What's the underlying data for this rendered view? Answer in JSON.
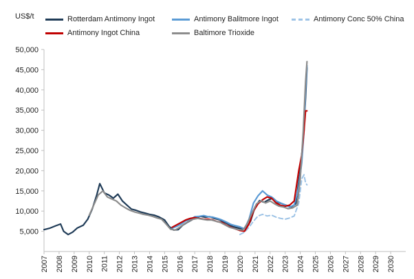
{
  "chart_data": {
    "type": "line",
    "ylabel": "US$/t",
    "ylim": [
      0,
      50000
    ],
    "yticks": [
      5000,
      10000,
      15000,
      20000,
      25000,
      30000,
      35000,
      40000,
      45000,
      50000
    ],
    "ytick_labels": [
      "5,000",
      "10,000",
      "15,000",
      "20,000",
      "25,000",
      "30,000",
      "35,000",
      "40,000",
      "45,000",
      "50,000"
    ],
    "xlim": [
      2007,
      2031
    ],
    "xticks": [
      2007,
      2008,
      2009,
      2010,
      2011,
      2012,
      2013,
      2014,
      2015,
      2016,
      2017,
      2018,
      2019,
      2020,
      2021,
      2022,
      2023,
      2024,
      2025,
      2026,
      2027,
      2028,
      2029,
      2030
    ],
    "xtick_labels": [
      "2007",
      "2008",
      "2009",
      "2010",
      "2011",
      "2012",
      "2013",
      "2014",
      "2015",
      "2016",
      "2017",
      "2018",
      "2019",
      "2020",
      "2021",
      "2022",
      "2023",
      "2024",
      "2025",
      "2026",
      "2027",
      "2028",
      "2029",
      "2030"
    ],
    "grid": false,
    "legend_position": "top",
    "series": [
      {
        "name": "Rotterdam Antimony Ingot",
        "color": "#1f3b57",
        "dash": "solid",
        "x": [
          2007.0,
          2007.4,
          2007.8,
          2008.1,
          2008.3,
          2008.6,
          2008.9,
          2009.2,
          2009.6,
          2009.9,
          2010.2,
          2010.5,
          2010.7,
          2011.0,
          2011.3,
          2011.6,
          2011.9,
          2012.2,
          2012.5,
          2012.8,
          2013.1,
          2013.4,
          2013.7,
          2014.0,
          2014.3,
          2014.6,
          2015.0,
          2015.3,
          2015.6,
          2015.9,
          2016.2,
          2016.5,
          2016.8,
          2017.1,
          2017.4,
          2017.7,
          2018.0,
          2018.3,
          2018.6,
          2018.9,
          2019.2,
          2019.5,
          2019.8,
          2020.1,
          2020.4,
          2020.7,
          2021.0,
          2021.3,
          2021.6,
          2021.9,
          2022.2,
          2022.5,
          2022.8,
          2023.1,
          2023.4,
          2023.7,
          2024.0,
          2024.2,
          2024.35,
          2024.45
        ],
        "y": [
          5400,
          5800,
          6400,
          6800,
          5000,
          4200,
          4800,
          5800,
          6500,
          8000,
          10500,
          14000,
          16800,
          14500,
          14000,
          13200,
          14200,
          12500,
          11500,
          10500,
          10200,
          9800,
          9500,
          9200,
          9000,
          8600,
          7800,
          6200,
          5300,
          5400,
          6500,
          7200,
          7800,
          8500,
          8700,
          8500,
          8600,
          8200,
          7900,
          7400,
          6800,
          6200,
          5900,
          5600,
          5700,
          7500,
          11000,
          12600,
          12200,
          12800,
          13200,
          12200,
          11800,
          11400,
          11000,
          11800,
          20000,
          28000,
          38000,
          45500
        ]
      },
      {
        "name": "Antimony Balitmore Ingot",
        "color": "#5b9bd5",
        "dash": "solid",
        "x": [
          2015.5,
          2015.8,
          2016.1,
          2016.4,
          2016.7,
          2017.0,
          2017.3,
          2017.6,
          2017.9,
          2018.2,
          2018.5,
          2018.8,
          2019.1,
          2019.4,
          2019.7,
          2020.0,
          2020.3,
          2020.6,
          2020.9,
          2021.2,
          2021.5,
          2021.8,
          2022.1,
          2022.4,
          2022.7,
          2023.0,
          2023.3,
          2023.6,
          2023.9,
          2024.1,
          2024.25,
          2024.35,
          2024.45
        ],
        "y": [
          5800,
          6200,
          6800,
          7600,
          7900,
          8600,
          8700,
          8900,
          8600,
          8500,
          8200,
          7800,
          7300,
          6700,
          6400,
          6100,
          5600,
          8000,
          12000,
          13800,
          15000,
          14000,
          13500,
          12500,
          12000,
          11500,
          11000,
          11500,
          16000,
          22000,
          30000,
          40000,
          46000
        ]
      },
      {
        "name": "Antimony Conc 50% China",
        "color": "#9dc3e6",
        "dash": "dashed",
        "x": [
          2020.0,
          2020.3,
          2020.6,
          2020.9,
          2021.2,
          2021.5,
          2021.8,
          2022.1,
          2022.4,
          2022.7,
          2023.0,
          2023.3,
          2023.6,
          2023.9,
          2024.1,
          2024.25,
          2024.35,
          2024.45
        ],
        "y": [
          4200,
          4800,
          6000,
          7500,
          8800,
          9200,
          8800,
          9000,
          8500,
          8200,
          8000,
          8300,
          8800,
          12000,
          18000,
          19000,
          17000,
          16500
        ]
      },
      {
        "name": "Antimony Ingot China",
        "color": "#c00000",
        "dash": "solid",
        "x": [
          2015.5,
          2015.8,
          2016.1,
          2016.4,
          2016.7,
          2017.0,
          2017.3,
          2017.6,
          2017.9,
          2018.2,
          2018.5,
          2018.8,
          2019.1,
          2019.4,
          2019.7,
          2020.0,
          2020.3,
          2020.6,
          2020.9,
          2021.2,
          2021.5,
          2021.8,
          2022.1,
          2022.4,
          2022.7,
          2023.0,
          2023.3,
          2023.6,
          2023.9,
          2024.1,
          2024.25,
          2024.35,
          2024.45
        ],
        "y": [
          6000,
          6600,
          7200,
          7800,
          8200,
          8400,
          8200,
          8000,
          8000,
          7800,
          7400,
          7200,
          6500,
          6000,
          5600,
          5200,
          5000,
          6800,
          10000,
          11800,
          12800,
          13500,
          13200,
          12000,
          11400,
          11200,
          11500,
          12500,
          20000,
          24000,
          30000,
          34800,
          34800
        ]
      },
      {
        "name": "Baltimore Trioxide",
        "color": "#8c8c8c",
        "dash": "solid",
        "x": [
          2010.0,
          2010.3,
          2010.6,
          2010.9,
          2011.2,
          2011.5,
          2011.8,
          2012.1,
          2012.4,
          2012.7,
          2013.0,
          2013.3,
          2013.6,
          2013.9,
          2014.2,
          2014.5,
          2014.8,
          2015.1,
          2015.4,
          2015.7,
          2016.0,
          2016.3,
          2016.6,
          2016.9,
          2017.2,
          2017.5,
          2017.8,
          2018.1,
          2018.4,
          2018.7,
          2019.0,
          2019.3,
          2019.6,
          2019.9,
          2020.2,
          2020.5,
          2020.8,
          2021.1,
          2021.4,
          2021.7,
          2022.0,
          2022.3,
          2022.6,
          2022.9,
          2023.2,
          2023.5,
          2023.8,
          2024.0,
          2024.2,
          2024.35,
          2024.45
        ],
        "y": [
          9000,
          11500,
          14000,
          15000,
          13500,
          13000,
          12500,
          11500,
          10800,
          10200,
          9800,
          9500,
          9200,
          9000,
          8700,
          8300,
          8000,
          6800,
          5500,
          5300,
          6000,
          6800,
          7500,
          8000,
          8200,
          8000,
          7800,
          7800,
          7500,
          7200,
          6600,
          6000,
          5700,
          5400,
          5300,
          7000,
          9500,
          11800,
          12600,
          12000,
          12500,
          11800,
          11200,
          11000,
          10600,
          10800,
          11500,
          18000,
          30000,
          42000,
          47000
        ]
      }
    ]
  }
}
